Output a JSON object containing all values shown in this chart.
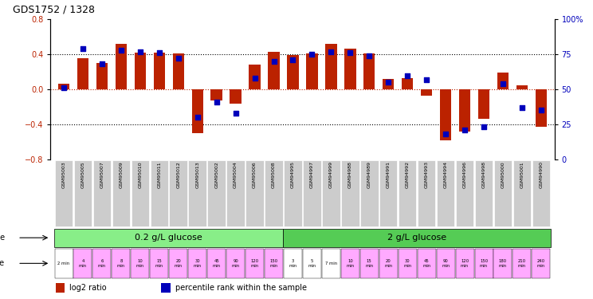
{
  "title": "GDS1752 / 1328",
  "samples": [
    "GSM95003",
    "GSM95005",
    "GSM95007",
    "GSM95009",
    "GSM95010",
    "GSM95011",
    "GSM95012",
    "GSM95013",
    "GSM95002",
    "GSM95004",
    "GSM95006",
    "GSM95008",
    "GSM94995",
    "GSM94997",
    "GSM94999",
    "GSM94988",
    "GSM94989",
    "GSM94991",
    "GSM94992",
    "GSM94993",
    "GSM94994",
    "GSM94996",
    "GSM94998",
    "GSM95000",
    "GSM95001",
    "GSM94990"
  ],
  "log2_ratio": [
    0.06,
    0.36,
    0.3,
    0.52,
    0.42,
    0.42,
    0.41,
    -0.5,
    -0.13,
    -0.16,
    0.28,
    0.43,
    0.39,
    0.41,
    0.52,
    0.47,
    0.41,
    0.12,
    0.13,
    -0.07,
    -0.58,
    -0.48,
    -0.34,
    0.19,
    0.05,
    -0.43
  ],
  "percentile": [
    51,
    79,
    68,
    78,
    77,
    76,
    72,
    30,
    41,
    33,
    58,
    70,
    71,
    75,
    77,
    76,
    74,
    55,
    60,
    57,
    18,
    21,
    23,
    54,
    37,
    35
  ],
  "ylim_left": [
    -0.8,
    0.8
  ],
  "ylim_right": [
    0,
    100
  ],
  "yticks_left": [
    -0.8,
    -0.4,
    0.0,
    0.4,
    0.8
  ],
  "yticks_right": [
    0,
    25,
    50,
    75,
    100
  ],
  "ytick_labels_right": [
    "0",
    "25",
    "50",
    "75",
    "100%"
  ],
  "hlines_black": [
    0.4,
    -0.4
  ],
  "hline_red": 0.0,
  "bar_color": "#bb2200",
  "dot_color": "#0000bb",
  "background": "#ffffff",
  "dose_groups": [
    {
      "label": "0.2 g/L glucose",
      "n": 12,
      "color": "#88ee88"
    },
    {
      "label": "2 g/L glucose",
      "n": 14,
      "color": "#55cc55"
    }
  ],
  "time_labels": [
    "2 min",
    "4\nmin",
    "6\nmin",
    "8\nmin",
    "10\nmin",
    "15\nmin",
    "20\nmin",
    "30\nmin",
    "45\nmin",
    "90\nmin",
    "120\nmin",
    "150\nmin",
    "3\nmin",
    "5\nmin",
    "7 min",
    "10\nmin",
    "15\nmin",
    "20\nmin",
    "30\nmin",
    "45\nmin",
    "90\nmin",
    "120\nmin",
    "150\nmin",
    "180\nmin",
    "210\nmin",
    "240\nmin"
  ],
  "time_bg": [
    "#ffffff",
    "#ffaaff",
    "#ffaaff",
    "#ffaaff",
    "#ffaaff",
    "#ffaaff",
    "#ffaaff",
    "#ffaaff",
    "#ffaaff",
    "#ffaaff",
    "#ffaaff",
    "#ffaaff",
    "#ffffff",
    "#ffffff",
    "#ffffff",
    "#ffaaff",
    "#ffaaff",
    "#ffaaff",
    "#ffaaff",
    "#ffaaff",
    "#ffaaff",
    "#ffaaff",
    "#ffaaff",
    "#ffaaff",
    "#ffaaff",
    "#ffaaff"
  ],
  "legend_items": [
    {
      "color": "#bb2200",
      "label": "log2 ratio"
    },
    {
      "color": "#0000bb",
      "label": "percentile rank within the sample"
    }
  ],
  "gsm_bg": "#cccccc"
}
